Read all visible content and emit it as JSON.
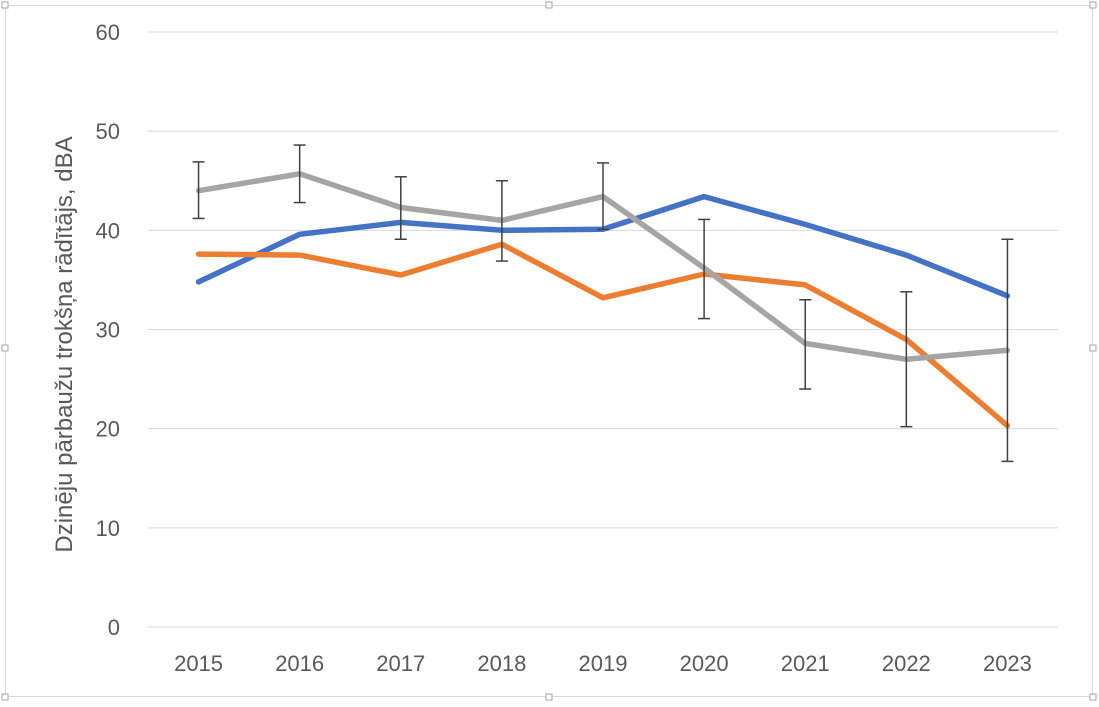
{
  "chart_data": {
    "type": "line",
    "title": "",
    "xlabel": "",
    "ylabel": "Dzinēju pārbaužu trokšņa rādītājs, dBA",
    "ylim": [
      0,
      60
    ],
    "yticks": [
      0,
      10,
      20,
      30,
      40,
      50,
      60
    ],
    "grid": true,
    "legend": "none",
    "categories": [
      "2015",
      "2016",
      "2017",
      "2018",
      "2019",
      "2020",
      "2021",
      "2022",
      "2023"
    ],
    "series": [
      {
        "color": "#4472c4",
        "values": [
          34.8,
          39.6,
          40.8,
          40.0,
          40.1,
          43.4,
          40.6,
          37.5,
          33.4
        ]
      },
      {
        "color": "#ed7d31",
        "values": [
          37.6,
          37.5,
          35.5,
          38.6,
          33.2,
          35.6,
          34.5,
          29.0,
          20.3
        ]
      },
      {
        "color": "#a5a5a5",
        "values": [
          44.0,
          45.7,
          42.3,
          41.0,
          43.4,
          36.2,
          28.6,
          27.0,
          27.9
        ],
        "error_bars": {
          "lower": [
            41.2,
            42.8,
            39.1,
            36.9,
            40.1,
            31.1,
            24.0,
            20.2,
            16.7
          ],
          "upper": [
            46.9,
            48.6,
            45.4,
            45.0,
            46.8,
            41.1,
            33.0,
            33.8,
            39.1
          ]
        }
      }
    ]
  }
}
